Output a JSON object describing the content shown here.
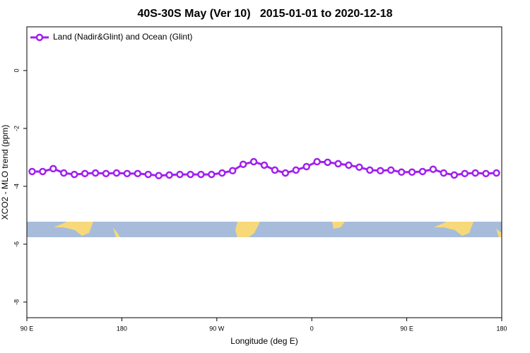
{
  "chart_data": {
    "type": "line",
    "title": "40S-30S May (Ver 10)   2015-01-01 to 2020-12-18",
    "x_label": "Longitude (deg E)",
    "y_label": "XCO2 - MLO trend (ppm)",
    "x": [
      95,
      105,
      115,
      125,
      135,
      145,
      155,
      165,
      175,
      185,
      195,
      205,
      215,
      225,
      235,
      245,
      255,
      265,
      275,
      285,
      295,
      305,
      315,
      325,
      335,
      345,
      355,
      365,
      375,
      385,
      395,
      405,
      415,
      425,
      435,
      445,
      455,
      465,
      475,
      485,
      495,
      505,
      515,
      525,
      535
    ],
    "series": [
      {
        "name": "Land (Nadir&Glint) and Ocean (Glint)",
        "color": "#a020f0",
        "values": [
          -3.49,
          -3.49,
          -3.39,
          -3.54,
          -3.59,
          -3.56,
          -3.54,
          -3.56,
          -3.54,
          -3.56,
          -3.56,
          -3.59,
          -3.63,
          -3.61,
          -3.59,
          -3.59,
          -3.59,
          -3.59,
          -3.54,
          -3.46,
          -3.24,
          -3.15,
          -3.27,
          -3.44,
          -3.54,
          -3.44,
          -3.32,
          -3.15,
          -3.17,
          -3.22,
          -3.27,
          -3.34,
          -3.44,
          -3.46,
          -3.44,
          -3.51,
          -3.51,
          -3.49,
          -3.41,
          -3.54,
          -3.61,
          -3.56,
          -3.54,
          -3.56,
          -3.54
        ]
      }
    ],
    "xlim": [
      90,
      540
    ],
    "xticks": [
      {
        "value": 90,
        "label": "90 E"
      },
      {
        "value": 180,
        "label": "180"
      },
      {
        "value": 270,
        "label": "90 W"
      },
      {
        "value": 360,
        "label": "0"
      },
      {
        "value": 450,
        "label": "90 E"
      },
      {
        "value": 540,
        "label": "180"
      }
    ],
    "ylim": [
      -8.54,
      1.51
    ],
    "yticks": [
      0,
      -2,
      -4,
      -6,
      -8
    ],
    "legend": "top-left"
  }
}
